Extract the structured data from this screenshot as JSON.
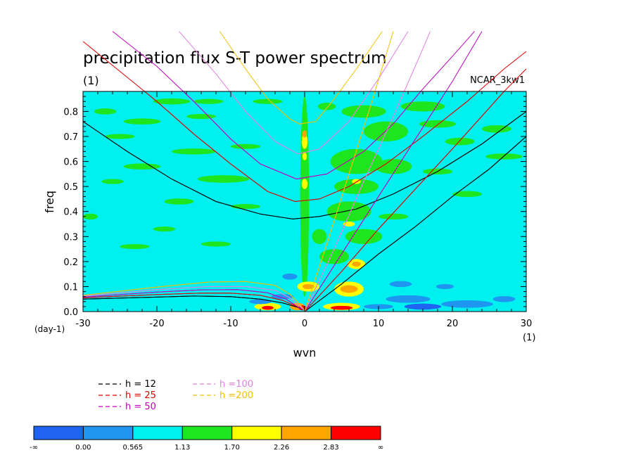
{
  "chart_data": {
    "type": "heatmap",
    "title": "precipitation flux S-T power spectrum",
    "units_label": "(1)",
    "model_label": "NCAR_3kw1",
    "xlabel": "wvn",
    "x_unit": "(1)",
    "ylabel": "freq",
    "y_unit": "(day-1)",
    "xlim": [
      -30,
      30
    ],
    "ylim": [
      0,
      0.88
    ],
    "x_ticks": [
      {
        "v": -30,
        "label": "-30"
      },
      {
        "v": -20,
        "label": "-20"
      },
      {
        "v": -10,
        "label": "-10"
      },
      {
        "v": 0,
        "label": "0"
      },
      {
        "v": 10,
        "label": "10"
      },
      {
        "v": 20,
        "label": "20"
      },
      {
        "v": 30,
        "label": "30"
      }
    ],
    "y_ticks": [
      {
        "v": 0.0,
        "label": "0.0"
      },
      {
        "v": 0.1,
        "label": "0.1"
      },
      {
        "v": 0.2,
        "label": "0.2"
      },
      {
        "v": 0.3,
        "label": "0.3"
      },
      {
        "v": 0.4,
        "label": "0.4"
      },
      {
        "v": 0.5,
        "label": "0.5"
      },
      {
        "v": 0.6,
        "label": "0.6"
      },
      {
        "v": 0.7,
        "label": "0.7"
      },
      {
        "v": 0.8,
        "label": "0.8"
      }
    ],
    "colorbar": {
      "colors": [
        "#1e64f0",
        "#1e96f0",
        "#00f0f0",
        "#1ee61e",
        "#ffff00",
        "#ffa500",
        "#ff0000"
      ],
      "labels": [
        "-∞",
        "0.00",
        "0.565",
        "1.13",
        "1.70",
        "2.26",
        "2.83",
        "∞"
      ]
    },
    "background_level_color": "#00f0f0",
    "blobs": [
      {
        "x": -27,
        "y": 0.8,
        "rx": 1.5,
        "ry": 0.012,
        "c": 3
      },
      {
        "x": -18,
        "y": 0.84,
        "rx": 2.5,
        "ry": 0.012,
        "c": 3
      },
      {
        "x": -13,
        "y": 0.84,
        "rx": 2.0,
        "ry": 0.01,
        "c": 3
      },
      {
        "x": -5,
        "y": 0.84,
        "rx": 2.0,
        "ry": 0.01,
        "c": 3
      },
      {
        "x": -22,
        "y": 0.76,
        "rx": 2.5,
        "ry": 0.012,
        "c": 3
      },
      {
        "x": -14,
        "y": 0.78,
        "rx": 2.0,
        "ry": 0.01,
        "c": 3
      },
      {
        "x": -25,
        "y": 0.7,
        "rx": 2.0,
        "ry": 0.01,
        "c": 3
      },
      {
        "x": -15,
        "y": 0.64,
        "rx": 3.0,
        "ry": 0.012,
        "c": 3
      },
      {
        "x": -8,
        "y": 0.66,
        "rx": 2.0,
        "ry": 0.01,
        "c": 3
      },
      {
        "x": -22,
        "y": 0.58,
        "rx": 2.5,
        "ry": 0.012,
        "c": 3
      },
      {
        "x": -26,
        "y": 0.52,
        "rx": 1.5,
        "ry": 0.01,
        "c": 3
      },
      {
        "x": -11,
        "y": 0.53,
        "rx": 3.5,
        "ry": 0.015,
        "c": 3
      },
      {
        "x": -17,
        "y": 0.44,
        "rx": 2.0,
        "ry": 0.012,
        "c": 3
      },
      {
        "x": -8,
        "y": 0.42,
        "rx": 2.0,
        "ry": 0.01,
        "c": 3
      },
      {
        "x": -29,
        "y": 0.38,
        "rx": 1.0,
        "ry": 0.012,
        "c": 3
      },
      {
        "x": -19,
        "y": 0.33,
        "rx": 1.5,
        "ry": 0.01,
        "c": 3
      },
      {
        "x": -23,
        "y": 0.26,
        "rx": 2.0,
        "ry": 0.01,
        "c": 3
      },
      {
        "x": -12,
        "y": 0.27,
        "rx": 2.0,
        "ry": 0.01,
        "c": 3
      },
      {
        "x": -2,
        "y": 0.14,
        "rx": 1.0,
        "ry": 0.012,
        "c": 1
      },
      {
        "x": 0,
        "y": 0.46,
        "rx": 0.6,
        "ry": 0.4,
        "c": 3
      },
      {
        "x": 0,
        "y": 0.51,
        "rx": 0.4,
        "ry": 0.02,
        "c": 4
      },
      {
        "x": 0,
        "y": 0.68,
        "rx": 0.4,
        "ry": 0.03,
        "c": 4
      },
      {
        "x": 0,
        "y": 0.71,
        "rx": 0.3,
        "ry": 0.015,
        "c": 5
      },
      {
        "x": 0,
        "y": 0.62,
        "rx": 0.3,
        "ry": 0.015,
        "c": 4
      },
      {
        "x": 8,
        "y": 0.8,
        "rx": 3.0,
        "ry": 0.025,
        "c": 3
      },
      {
        "x": 11,
        "y": 0.72,
        "rx": 3.0,
        "ry": 0.04,
        "c": 3
      },
      {
        "x": 7,
        "y": 0.6,
        "rx": 3.5,
        "ry": 0.05,
        "c": 3
      },
      {
        "x": 12,
        "y": 0.58,
        "rx": 2.5,
        "ry": 0.03,
        "c": 3
      },
      {
        "x": 7,
        "y": 0.5,
        "rx": 3.0,
        "ry": 0.03,
        "c": 3
      },
      {
        "x": 7,
        "y": 0.52,
        "rx": 0.6,
        "ry": 0.01,
        "c": 4
      },
      {
        "x": 6,
        "y": 0.4,
        "rx": 3.0,
        "ry": 0.04,
        "c": 3
      },
      {
        "x": 6,
        "y": 0.35,
        "rx": 0.8,
        "ry": 0.01,
        "c": 4
      },
      {
        "x": 8,
        "y": 0.3,
        "rx": 2.5,
        "ry": 0.03,
        "c": 3
      },
      {
        "x": 7,
        "y": 0.19,
        "rx": 1.2,
        "ry": 0.02,
        "c": 4
      },
      {
        "x": 7,
        "y": 0.19,
        "rx": 0.6,
        "ry": 0.01,
        "c": 5
      },
      {
        "x": 4,
        "y": 0.22,
        "rx": 2.0,
        "ry": 0.03,
        "c": 3
      },
      {
        "x": 6,
        "y": 0.09,
        "rx": 2.0,
        "ry": 0.03,
        "c": 4
      },
      {
        "x": 6,
        "y": 0.09,
        "rx": 1.2,
        "ry": 0.015,
        "c": 5
      },
      {
        "x": 0.5,
        "y": 0.1,
        "rx": 1.5,
        "ry": 0.02,
        "c": 4
      },
      {
        "x": 0.5,
        "y": 0.1,
        "rx": 0.8,
        "ry": 0.01,
        "c": 5
      },
      {
        "x": 5,
        "y": 0.02,
        "rx": 2.5,
        "ry": 0.015,
        "c": 4
      },
      {
        "x": 5,
        "y": 0.015,
        "rx": 1.5,
        "ry": 0.008,
        "c": 6
      },
      {
        "x": -5,
        "y": 0.02,
        "rx": 1.8,
        "ry": 0.015,
        "c": 4
      },
      {
        "x": -5,
        "y": 0.015,
        "rx": 0.8,
        "ry": 0.008,
        "c": 6
      },
      {
        "x": -1,
        "y": 0.02,
        "rx": 1.0,
        "ry": 0.015,
        "c": 5
      },
      {
        "x": -0.3,
        "y": 0.015,
        "rx": 0.5,
        "ry": 0.01,
        "c": 6
      },
      {
        "x": 16,
        "y": 0.82,
        "rx": 3.0,
        "ry": 0.02,
        "c": 3
      },
      {
        "x": 18,
        "y": 0.75,
        "rx": 2.5,
        "ry": 0.015,
        "c": 3
      },
      {
        "x": 21,
        "y": 0.68,
        "rx": 2.0,
        "ry": 0.015,
        "c": 3
      },
      {
        "x": 26,
        "y": 0.73,
        "rx": 2.0,
        "ry": 0.015,
        "c": 3
      },
      {
        "x": 27,
        "y": 0.62,
        "rx": 2.5,
        "ry": 0.012,
        "c": 3
      },
      {
        "x": 18,
        "y": 0.56,
        "rx": 2.0,
        "ry": 0.012,
        "c": 3
      },
      {
        "x": 22,
        "y": 0.47,
        "rx": 2.0,
        "ry": 0.012,
        "c": 3
      },
      {
        "x": 12,
        "y": 0.38,
        "rx": 2.0,
        "ry": 0.012,
        "c": 3
      },
      {
        "x": 3,
        "y": 0.82,
        "rx": 1.2,
        "ry": 0.015,
        "c": 3
      },
      {
        "x": 2,
        "y": 0.3,
        "rx": 1.0,
        "ry": 0.03,
        "c": 3
      },
      {
        "x": -3,
        "y": 0.06,
        "rx": 1.5,
        "ry": 0.01,
        "c": 1
      },
      {
        "x": -6,
        "y": 0.04,
        "rx": 1.5,
        "ry": 0.01,
        "c": 1
      },
      {
        "x": 14,
        "y": 0.05,
        "rx": 3.0,
        "ry": 0.015,
        "c": 1
      },
      {
        "x": 16,
        "y": 0.02,
        "rx": 2.5,
        "ry": 0.012,
        "c": 0
      },
      {
        "x": 22,
        "y": 0.03,
        "rx": 3.5,
        "ry": 0.015,
        "c": 1
      },
      {
        "x": 27,
        "y": 0.05,
        "rx": 1.5,
        "ry": 0.012,
        "c": 1
      },
      {
        "x": 13,
        "y": 0.11,
        "rx": 1.5,
        "ry": 0.012,
        "c": 1
      },
      {
        "x": 19,
        "y": 0.1,
        "rx": 1.2,
        "ry": 0.01,
        "c": 1
      },
      {
        "x": 10,
        "y": 0.02,
        "rx": 2.0,
        "ry": 0.01,
        "c": 1
      }
    ],
    "legend": [
      {
        "label": "h = 12",
        "color": "#000000"
      },
      {
        "label": "h = 25",
        "color": "#e00000"
      },
      {
        "label": "h = 50",
        "color": "#c000c0"
      },
      {
        "label": "h =100",
        "color": "#e080e0"
      },
      {
        "label": "h =200",
        "color": "#f0c000"
      }
    ],
    "curves": [
      {
        "h": 12,
        "color": "#000000",
        "series": [
          {
            "pts": [
              [
                -30,
                0.76
              ],
              [
                -24,
                0.64
              ],
              [
                -18,
                0.53
              ],
              [
                -12,
                0.44
              ],
              [
                -6,
                0.39
              ],
              [
                -1.6,
                0.37
              ],
              [
                2,
                0.38
              ],
              [
                7,
                0.41
              ],
              [
                12,
                0.47
              ],
              [
                18,
                0.56
              ],
              [
                24,
                0.67
              ],
              [
                30,
                0.8
              ]
            ]
          },
          {
            "pts": [
              [
                -30,
                0.05
              ],
              [
                -20,
                0.058
              ],
              [
                -15,
                0.062
              ],
              [
                -10,
                0.06
              ],
              [
                -6,
                0.05
              ],
              [
                -3,
                0.035
              ],
              [
                -1,
                0.018
              ],
              [
                0,
                0.005
              ]
            ]
          },
          {
            "pts": [
              [
                0,
                0.0
              ],
              [
                5,
                0.11
              ],
              [
                10,
                0.23
              ],
              [
                15,
                0.34
              ],
              [
                20,
                0.46
              ],
              [
                25,
                0.57
              ],
              [
                30,
                0.7
              ]
            ]
          }
        ]
      },
      {
        "h": 25,
        "color": "#e00000",
        "series": [
          {
            "pts": [
              [
                -30,
                1.08
              ],
              [
                -25,
                0.96
              ],
              [
                -20,
                0.84
              ],
              [
                -15,
                0.71
              ],
              [
                -10,
                0.59
              ],
              [
                -5,
                0.48
              ],
              [
                -1.3,
                0.44
              ],
              [
                2,
                0.45
              ],
              [
                6,
                0.5
              ],
              [
                11,
                0.59
              ],
              [
                16,
                0.7
              ],
              [
                22,
                0.84
              ],
              [
                27,
                0.97
              ],
              [
                30,
                1.04
              ]
            ]
          },
          {
            "pts": [
              [
                -30,
                0.055
              ],
              [
                -20,
                0.068
              ],
              [
                -14,
                0.074
              ],
              [
                -10,
                0.074
              ],
              [
                -6,
                0.065
              ],
              [
                -3,
                0.045
              ],
              [
                -1,
                0.02
              ],
              [
                0,
                0.005
              ]
            ]
          },
          {
            "pts": [
              [
                0,
                0.0
              ],
              [
                5,
                0.16
              ],
              [
                10,
                0.33
              ],
              [
                15,
                0.49
              ],
              [
                20,
                0.65
              ],
              [
                27,
                0.88
              ],
              [
                30,
                0.97
              ]
            ]
          }
        ]
      },
      {
        "h": 50,
        "color": "#c000c0",
        "series": [
          {
            "pts": [
              [
                -26,
                1.12
              ],
              [
                -20,
                0.98
              ],
              [
                -15,
                0.84
              ],
              [
                -10,
                0.69
              ],
              [
                -6,
                0.59
              ],
              [
                -1.1,
                0.53
              ],
              [
                3,
                0.55
              ],
              [
                8,
                0.64
              ],
              [
                12,
                0.75
              ],
              [
                16,
                0.89
              ],
              [
                20,
                1.02
              ],
              [
                23,
                1.12
              ]
            ]
          },
          {
            "pts": [
              [
                -30,
                0.058
              ],
              [
                -20,
                0.078
              ],
              [
                -14,
                0.087
              ],
              [
                -9,
                0.088
              ],
              [
                -5,
                0.075
              ],
              [
                -2.5,
                0.05
              ],
              [
                -1,
                0.02
              ],
              [
                0,
                0.005
              ]
            ]
          },
          {
            "pts": [
              [
                0,
                0.0
              ],
              [
                5,
                0.23
              ],
              [
                10,
                0.46
              ],
              [
                15,
                0.69
              ],
              [
                20,
                0.92
              ],
              [
                24,
                1.12
              ]
            ]
          }
        ]
      },
      {
        "h": 100,
        "color": "#e080e0",
        "series": [
          {
            "pts": [
              [
                -17,
                1.12
              ],
              [
                -12,
                0.95
              ],
              [
                -8,
                0.8
              ],
              [
                -4,
                0.68
              ],
              [
                -0.9,
                0.63
              ],
              [
                2,
                0.65
              ],
              [
                6,
                0.76
              ],
              [
                10,
                0.93
              ],
              [
                14,
                1.12
              ]
            ]
          },
          {
            "pts": [
              [
                -30,
                0.062
              ],
              [
                -20,
                0.088
              ],
              [
                -13,
                0.1
              ],
              [
                -8,
                0.1
              ],
              [
                -4,
                0.085
              ],
              [
                -2,
                0.055
              ],
              [
                -0.8,
                0.025
              ],
              [
                0,
                0.005
              ]
            ]
          },
          {
            "pts": [
              [
                0,
                0.0
              ],
              [
                4,
                0.25
              ],
              [
                8,
                0.52
              ],
              [
                12,
                0.78
              ],
              [
                16,
                1.05
              ],
              [
                17,
                1.12
              ]
            ]
          }
        ]
      },
      {
        "h": 200,
        "color": "#f0c000",
        "series": [
          {
            "pts": [
              [
                -11.5,
                1.12
              ],
              [
                -8,
                0.97
              ],
              [
                -5,
                0.85
              ],
              [
                -2,
                0.77
              ],
              [
                -0.7,
                0.75
              ],
              [
                1.5,
                0.76
              ],
              [
                4,
                0.85
              ],
              [
                7,
                0.97
              ],
              [
                10.5,
                1.12
              ]
            ]
          },
          {
            "pts": [
              [
                -30,
                0.065
              ],
              [
                -20,
                0.098
              ],
              [
                -13,
                0.118
              ],
              [
                -8,
                0.12
              ],
              [
                -4,
                0.105
              ],
              [
                -2,
                0.07
              ],
              [
                -0.7,
                0.03
              ],
              [
                0,
                0.005
              ]
            ]
          },
          {
            "pts": [
              [
                0,
                0.0
              ],
              [
                3,
                0.27
              ],
              [
                6,
                0.55
              ],
              [
                9,
                0.83
              ],
              [
                12,
                1.12
              ]
            ]
          }
        ]
      }
    ]
  }
}
